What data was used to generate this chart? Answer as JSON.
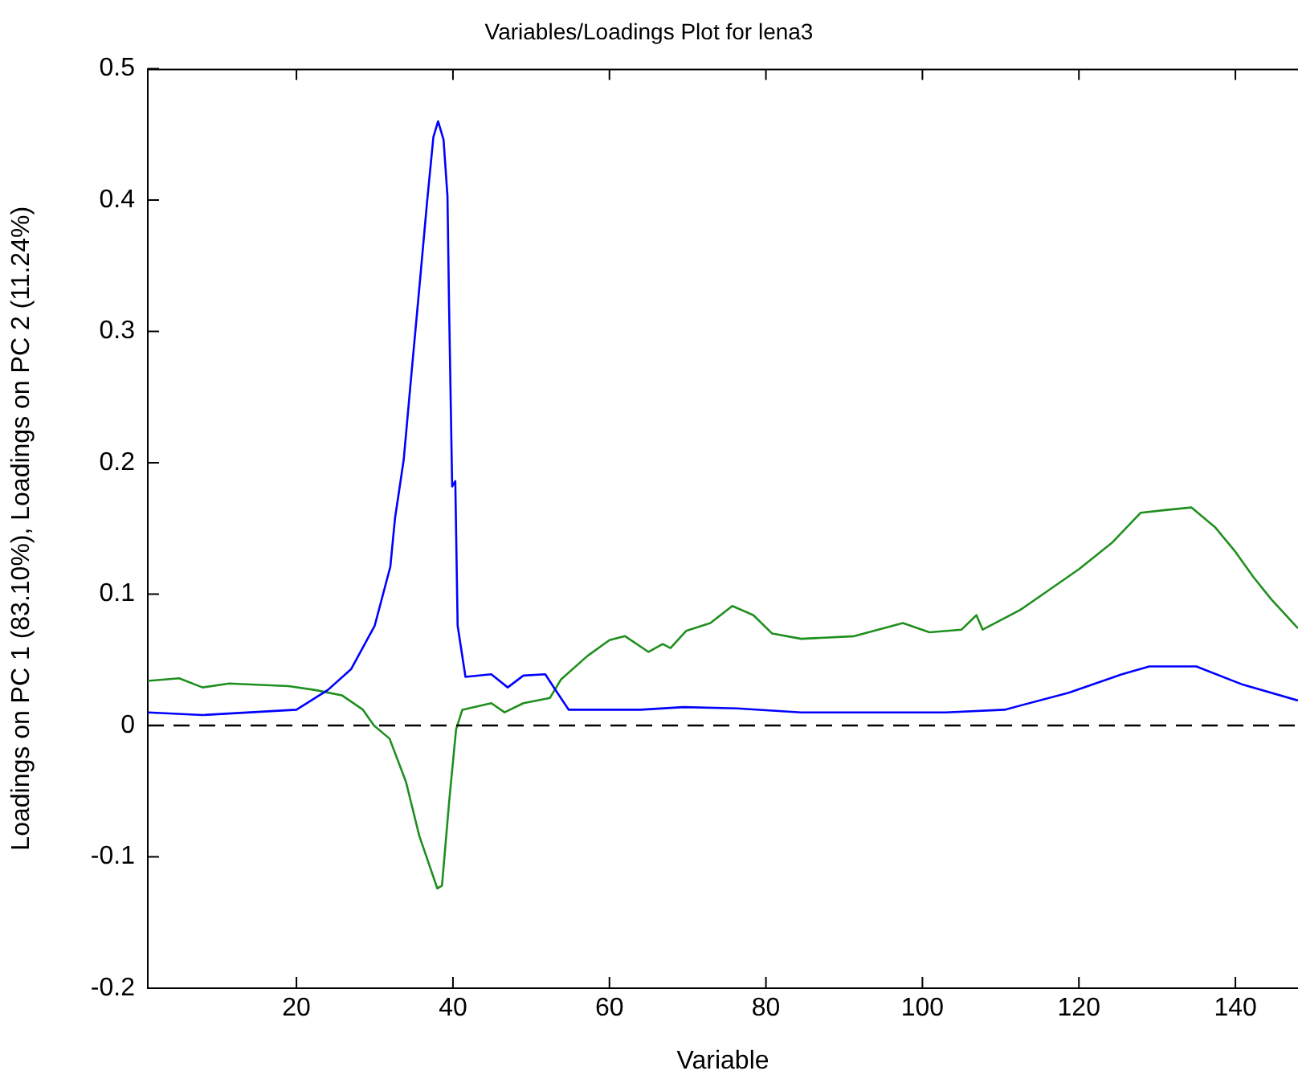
{
  "chart_data": {
    "type": "line",
    "title": "Variables/Loadings Plot for lena3",
    "xlabel": "Variable",
    "ylabel": "Loadings on PC 1 (83.10%), Loadings on PC 2 (11.24%)",
    "xlim": [
      1,
      148
    ],
    "ylim": [
      -0.2,
      0.5
    ],
    "xticks": [
      20,
      40,
      60,
      80,
      100,
      120,
      140
    ],
    "yticks": [
      -0.2,
      -0.1,
      0,
      0.1,
      0.2,
      0.3,
      0.4,
      0.5
    ],
    "grid": false,
    "legend": false,
    "marker": "none",
    "line_style": "solid",
    "ref_lines": [
      {
        "axis": "y",
        "value": 0,
        "color": "#000000",
        "line_style": "dashed"
      }
    ],
    "series": [
      {
        "color": "#0000ff",
        "x": [
          1,
          8,
          20,
          24,
          27,
          30,
          32,
          32.6,
          33.3,
          33.7,
          34.7,
          35.7,
          36.7,
          37.5,
          38.1,
          38.8,
          39.3,
          39.5,
          39.9,
          40.3,
          40.6,
          41.6,
          44.9,
          47,
          49,
          51.8,
          53,
          54.8,
          64,
          69.5,
          76.3,
          84.5,
          103,
          110.5,
          118.7,
          125.5,
          129,
          135,
          141,
          148
        ],
        "values": [
          0.01,
          0.008,
          0.012,
          0.027,
          0.043,
          0.076,
          0.121,
          0.158,
          0.186,
          0.202,
          0.268,
          0.333,
          0.399,
          0.448,
          0.46,
          0.446,
          0.403,
          0.321,
          0.182,
          0.186,
          0.076,
          0.037,
          0.039,
          0.029,
          0.038,
          0.039,
          0.028,
          0.012,
          0.012,
          0.014,
          0.013,
          0.01,
          0.01,
          0.012,
          0.025,
          0.039,
          0.045,
          0.045,
          0.031,
          0.019
        ]
      },
      {
        "color": "#1f8f1f",
        "x": [
          1,
          5,
          8,
          11.4,
          19,
          22.4,
          25.8,
          28.5,
          29.9,
          31.9,
          34,
          35.7,
          38,
          38.6,
          39.5,
          40.4,
          41.2,
          44.9,
          46.6,
          49,
          52.4,
          53.8,
          57.2,
          60,
          62,
          65,
          66.8,
          67.8,
          69.8,
          72.9,
          75.7,
          78.4,
          80.8,
          84.5,
          91.3,
          97.5,
          100.9,
          105,
          106.9,
          107.7,
          112.5,
          115.9,
          120,
          124.2,
          127.9,
          131,
          134.4,
          137.4,
          139.9,
          142.3,
          144.6,
          148
        ],
        "values": [
          0.034,
          0.036,
          0.029,
          0.032,
          0.03,
          0.027,
          0.023,
          0.012,
          0.0,
          -0.01,
          -0.043,
          -0.084,
          -0.124,
          -0.122,
          -0.059,
          -0.003,
          0.012,
          0.017,
          0.01,
          0.017,
          0.021,
          0.035,
          0.053,
          0.065,
          0.068,
          0.056,
          0.062,
          0.059,
          0.072,
          0.078,
          0.091,
          0.084,
          0.07,
          0.066,
          0.068,
          0.078,
          0.071,
          0.073,
          0.084,
          0.073,
          0.088,
          0.102,
          0.119,
          0.139,
          0.162,
          0.164,
          0.166,
          0.151,
          0.133,
          0.113,
          0.096,
          0.074
        ]
      }
    ]
  }
}
